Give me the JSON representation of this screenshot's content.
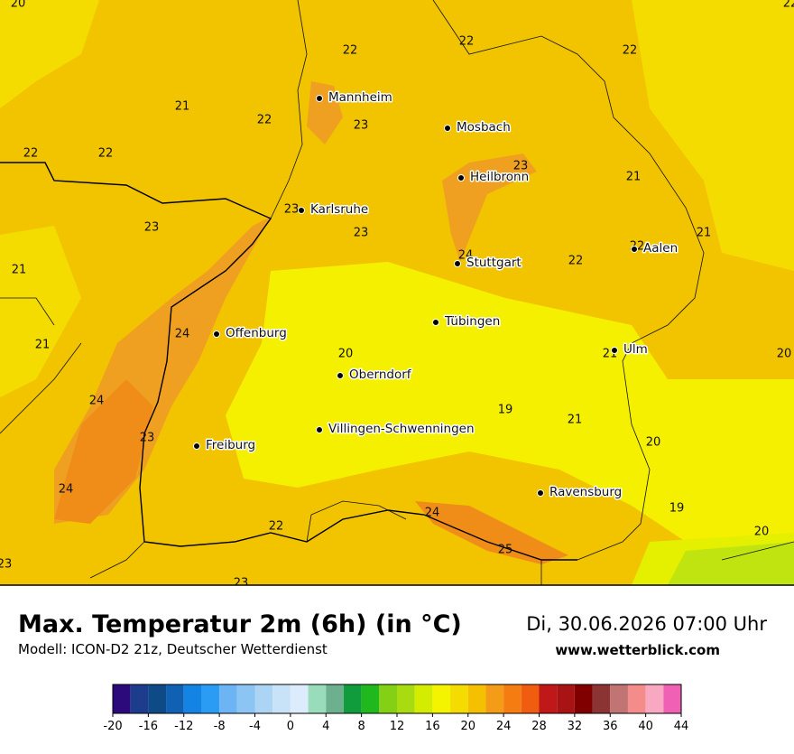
{
  "header": {
    "title": "Max. Temperatur 2m (6h) (in °C)",
    "model": "Modell: ICON-D2 21z, Deutscher Wetterdienst",
    "date": "Di, 30.06.2026 07:00 Uhr",
    "website": "www.wetterblick.com"
  },
  "cities": [
    "Mannheim",
    "Mosbach",
    "Heilbronn",
    "Karlsruhe",
    "Stuttgart",
    "Aalen",
    "Offenburg",
    "Tübingen",
    "Ulm",
    "Oberndorf",
    "Villingen-Schwenningen",
    "Freiburg",
    "Ravensburg"
  ],
  "temperature_labels": [
    20,
    22,
    22,
    22,
    22,
    21,
    22,
    23,
    22,
    22,
    23,
    21,
    23,
    23,
    23,
    24,
    22,
    21,
    22,
    21,
    24,
    21,
    20,
    21,
    20,
    24,
    19,
    21,
    23,
    20,
    24,
    24,
    19,
    22,
    20,
    25,
    23,
    23
  ],
  "colorbar": {
    "ticks": [
      -20,
      -16,
      -12,
      -8,
      -4,
      0,
      4,
      8,
      12,
      16,
      20,
      24,
      28,
      32,
      36,
      40,
      44
    ],
    "colors": [
      "#2c0a7c",
      "#1e3c8c",
      "#0e4a86",
      "#1060b4",
      "#1484e4",
      "#2a9cf4",
      "#6cb4f4",
      "#8cc4f4",
      "#acd4f4",
      "#c8e2f8",
      "#dcecfc",
      "#98dcbc",
      "#6cb090",
      "#109c3c",
      "#20b81c",
      "#84d014",
      "#a8dc10",
      "#d4ec00",
      "#f4f400",
      "#f4dc00",
      "#f4c000",
      "#f49c18",
      "#f47c10",
      "#f05c10",
      "#c01818",
      "#a81414",
      "#800000",
      "#8c3434",
      "#c07474",
      "#f48c8c",
      "#f8a8c0",
      "#f060b4"
    ]
  }
}
